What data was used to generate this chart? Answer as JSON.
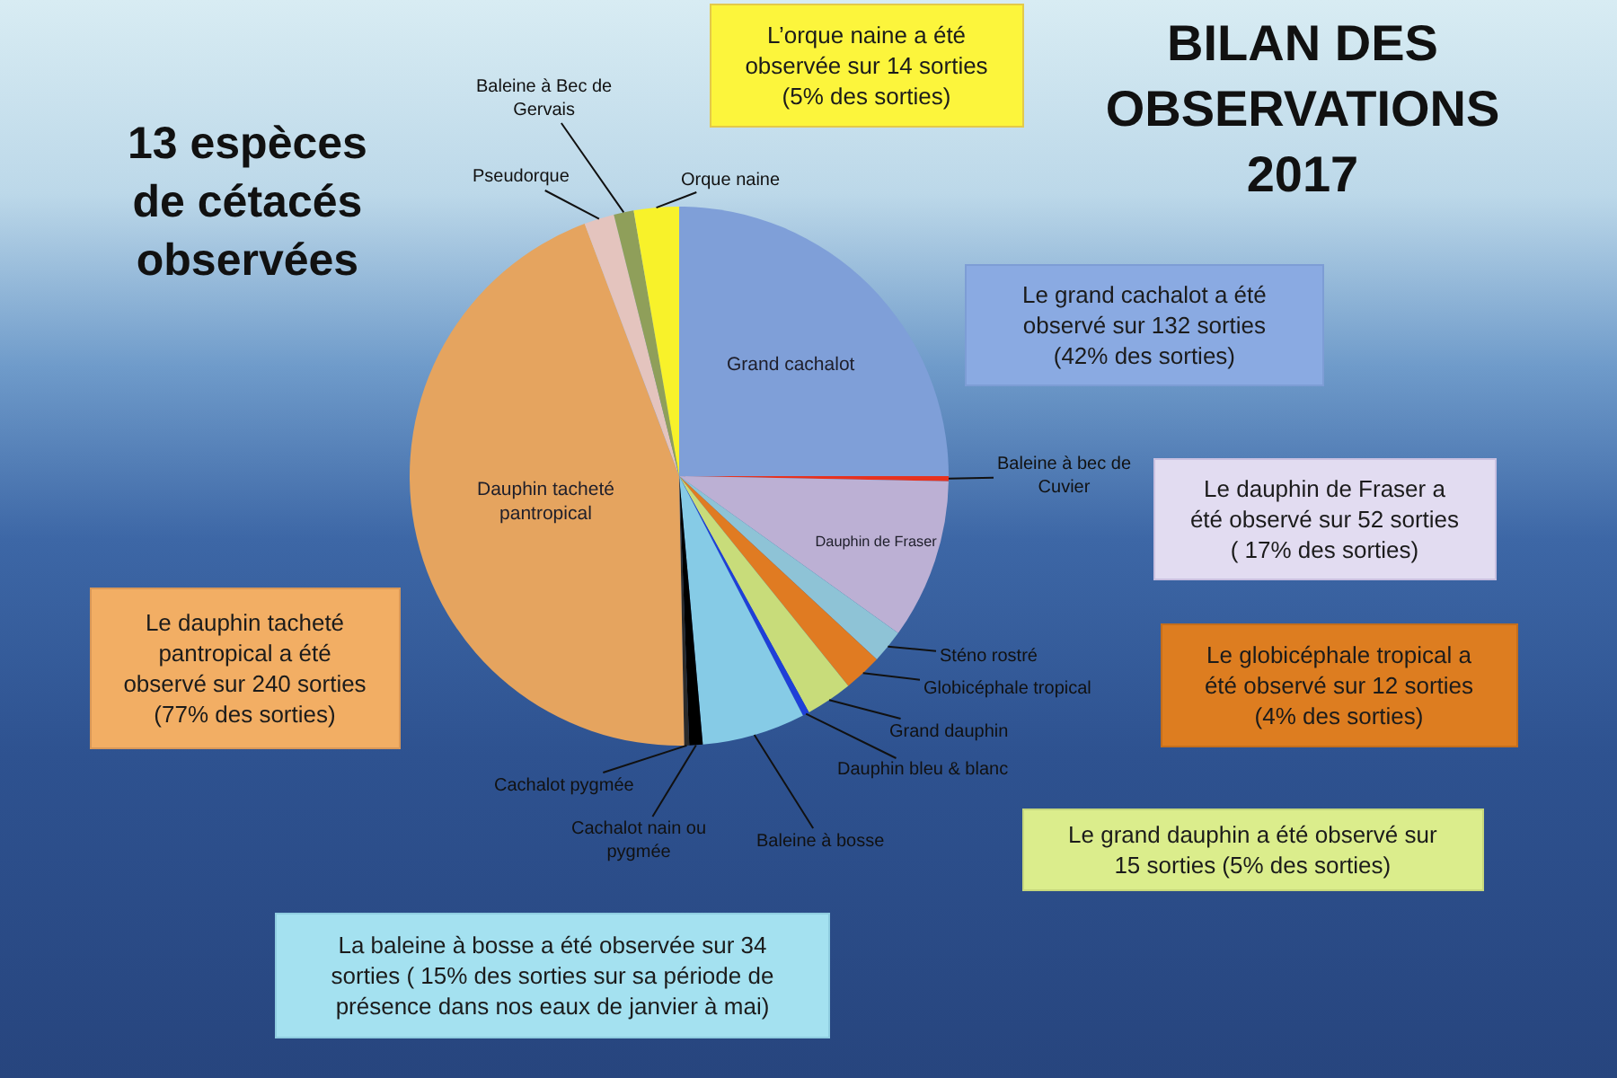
{
  "chart_data": {
    "type": "pie",
    "title": "BILAN DES\nOBSERVATIONS\n2017",
    "subtitle": "13 espèces\nde cétacés\nobservées",
    "categories": [
      "Grand cachalot",
      "Baleine à bec de\nCuvier",
      "Dauphin de Fraser",
      "Sténo rostré",
      "Globicéphale tropical",
      "Grand dauphin",
      "Dauphin bleu & blanc",
      "Baleine à bosse",
      "Cachalot nain ou\npygmée",
      "Cachalot pygmée",
      "Dauphin tacheté\npantropical",
      "Pseudorque",
      "Baleine à Bec de\nGervais",
      "Orque naine"
    ],
    "values": [
      25,
      0.3,
      9.6,
      2,
      2.3,
      2.8,
      0.4,
      6.2,
      0.8,
      0.3,
      44.6,
      1.8,
      1.2,
      2.7
    ],
    "colors": [
      "#7f9fd8",
      "#e8321e",
      "#bcb0d4",
      "#8ec3d6",
      "#e07b22",
      "#c8dc7a",
      "#1f3fd8",
      "#86cbe6",
      "#000000",
      "#2a2a2a",
      "#e5a45f",
      "#e4c4be",
      "#8f9f5a",
      "#f8f22a"
    ],
    "annotations": [
      "L’orque naine a été\nobservée sur 14 sorties\n(5% des sorties)",
      "Le grand cachalot a été\nobservé sur 132 sorties\n(42% des sorties)",
      "Le dauphin de Fraser a\nété observé sur 52 sorties\n( 17% des sorties)",
      "Le dauphin tacheté\npantropical a été\nobservé sur 240 sorties\n(77% des sorties)",
      "Le globicéphale tropical a\nété observé sur 12 sorties\n(4% des sorties)",
      "Le grand dauphin a été observé sur\n15 sorties (5% des sorties)",
      "La baleine à bosse a été observée sur 34\nsorties ( 15% des sorties sur sa période de\nprésence dans nos eaux de janvier à mai)"
    ],
    "legend": false
  }
}
